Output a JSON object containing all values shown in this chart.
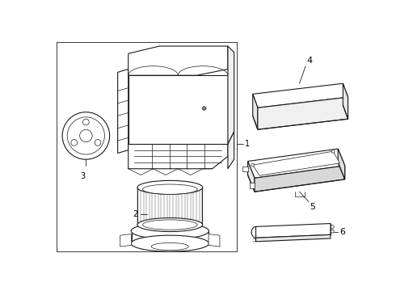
{
  "bg_color": "#f0f0f0",
  "line_color": "#1a1a1a",
  "fig_width": 4.9,
  "fig_height": 3.6,
  "dpi": 100
}
